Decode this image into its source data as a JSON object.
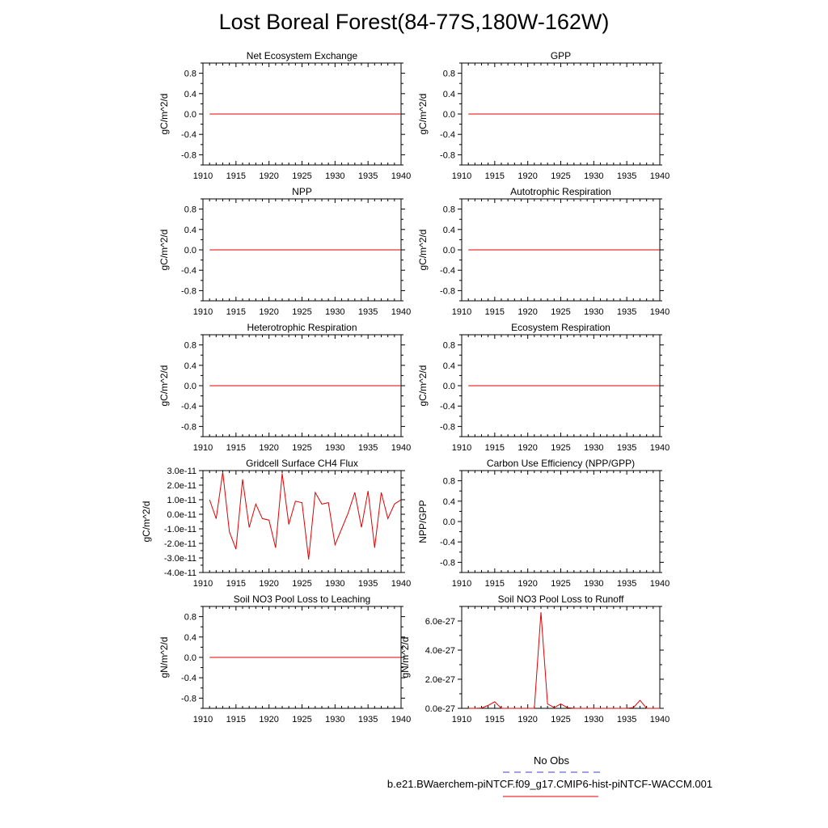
{
  "title": "Lost Boreal Forest(84-77S,180W-162W)",
  "legend": {
    "obs_label": "No Obs",
    "obs_color": "#4040c0",
    "case_label": "b.e21.BWaerchem-piNTCF.f09_g17.CMIP6-hist-piNTCF-WACCM.001",
    "case_color": "#e00000"
  },
  "chart_data": [
    {
      "type": "line",
      "title": "Net Ecosystem Exchange",
      "ylabel": "gC/m^2/d",
      "xlim": [
        1910,
        1940
      ],
      "ylim": [
        -1.0,
        1.0
      ],
      "xticks": [
        1910,
        1915,
        1920,
        1925,
        1930,
        1935,
        1940
      ],
      "yticks": [
        -0.8,
        -0.4,
        0.0,
        0.4,
        0.8
      ],
      "ytick_labels": [
        "-0.8",
        "-0.4",
        "0.0",
        "0.4",
        "0.8"
      ],
      "series": [
        {
          "color": "#e00000",
          "x": [
            1911,
            1940
          ],
          "y": [
            0,
            0
          ]
        }
      ]
    },
    {
      "type": "line",
      "title": "GPP",
      "ylabel": "gC/m^2/d",
      "xlim": [
        1910,
        1940
      ],
      "ylim": [
        -1.0,
        1.0
      ],
      "xticks": [
        1910,
        1915,
        1920,
        1925,
        1930,
        1935,
        1940
      ],
      "yticks": [
        -0.8,
        -0.4,
        0.0,
        0.4,
        0.8
      ],
      "ytick_labels": [
        "-0.8",
        "-0.4",
        "0.0",
        "0.4",
        "0.8"
      ],
      "series": [
        {
          "color": "#e00000",
          "x": [
            1911,
            1940
          ],
          "y": [
            0,
            0
          ]
        }
      ]
    },
    {
      "type": "line",
      "title": "NPP",
      "ylabel": "gC/m^2/d",
      "xlim": [
        1910,
        1940
      ],
      "ylim": [
        -1.0,
        1.0
      ],
      "xticks": [
        1910,
        1915,
        1920,
        1925,
        1930,
        1935,
        1940
      ],
      "yticks": [
        -0.8,
        -0.4,
        0.0,
        0.4,
        0.8
      ],
      "ytick_labels": [
        "-0.8",
        "-0.4",
        "0.0",
        "0.4",
        "0.8"
      ],
      "series": [
        {
          "color": "#e00000",
          "x": [
            1911,
            1940
          ],
          "y": [
            0,
            0
          ]
        }
      ]
    },
    {
      "type": "line",
      "title": "Autotrophic Respiration",
      "ylabel": "gC/m^2/d",
      "xlim": [
        1910,
        1940
      ],
      "ylim": [
        -1.0,
        1.0
      ],
      "xticks": [
        1910,
        1915,
        1920,
        1925,
        1930,
        1935,
        1940
      ],
      "yticks": [
        -0.8,
        -0.4,
        0.0,
        0.4,
        0.8
      ],
      "ytick_labels": [
        "-0.8",
        "-0.4",
        "0.0",
        "0.4",
        "0.8"
      ],
      "series": [
        {
          "color": "#e00000",
          "x": [
            1911,
            1940
          ],
          "y": [
            0,
            0
          ]
        }
      ]
    },
    {
      "type": "line",
      "title": "Heterotrophic Respiration",
      "ylabel": "gC/m^2/d",
      "xlim": [
        1910,
        1940
      ],
      "ylim": [
        -1.0,
        1.0
      ],
      "xticks": [
        1910,
        1915,
        1920,
        1925,
        1930,
        1935,
        1940
      ],
      "yticks": [
        -0.8,
        -0.4,
        0.0,
        0.4,
        0.8
      ],
      "ytick_labels": [
        "-0.8",
        "-0.4",
        "0.0",
        "0.4",
        "0.8"
      ],
      "series": [
        {
          "color": "#e00000",
          "x": [
            1911,
            1940
          ],
          "y": [
            0,
            0
          ]
        }
      ]
    },
    {
      "type": "line",
      "title": "Ecosystem Respiration",
      "ylabel": "gC/m^2/d",
      "xlim": [
        1910,
        1940
      ],
      "ylim": [
        -1.0,
        1.0
      ],
      "xticks": [
        1910,
        1915,
        1920,
        1925,
        1930,
        1935,
        1940
      ],
      "yticks": [
        -0.8,
        -0.4,
        0.0,
        0.4,
        0.8
      ],
      "ytick_labels": [
        "-0.8",
        "-0.4",
        "0.0",
        "0.4",
        "0.8"
      ],
      "series": [
        {
          "color": "#e00000",
          "x": [
            1911,
            1940
          ],
          "y": [
            0,
            0
          ]
        }
      ]
    },
    {
      "type": "line",
      "title": "Gridcell Surface CH4 Flux",
      "ylabel": "gC/m^2/d",
      "xlim": [
        1910,
        1940
      ],
      "ylim": [
        -4e-11,
        3e-11
      ],
      "xticks": [
        1910,
        1915,
        1920,
        1925,
        1930,
        1935,
        1940
      ],
      "yticks": [
        -4e-11,
        -3e-11,
        -2e-11,
        -1e-11,
        0,
        1e-11,
        2e-11,
        3e-11
      ],
      "ytick_labels": [
        "-4.0e-11",
        "-3.0e-11",
        "-2.0e-11",
        "-1.0e-11",
        "0.0e-11",
        "1.0e-11",
        "2.0e-11",
        "3.0e-11"
      ],
      "series": [
        {
          "color": "#e00000",
          "x": [
            1911,
            1912,
            1913,
            1914,
            1915,
            1916,
            1917,
            1918,
            1919,
            1920,
            1921,
            1922,
            1923,
            1924,
            1925,
            1926,
            1927,
            1928,
            1929,
            1930,
            1931,
            1932,
            1933,
            1934,
            1935,
            1936,
            1937,
            1938,
            1939,
            1940
          ],
          "y": [
            1e-11,
            -3e-12,
            2.9e-11,
            -1.2e-11,
            -2.4e-11,
            2.4e-11,
            -9e-12,
            7e-12,
            -3e-12,
            -4e-12,
            -2.3e-11,
            2.8e-11,
            -7e-12,
            9e-12,
            8e-12,
            -3.1e-11,
            1.5e-11,
            7e-12,
            8e-12,
            -2.1e-11,
            -1e-11,
            1e-12,
            1.5e-11,
            -9e-12,
            1.6e-11,
            -2.3e-11,
            1.5e-11,
            -3e-12,
            7e-12,
            1e-11
          ]
        }
      ]
    },
    {
      "type": "line",
      "title": "Carbon Use Efficiency (NPP/GPP)",
      "ylabel": "NPP/GPP",
      "xlim": [
        1910,
        1940
      ],
      "ylim": [
        -1.0,
        1.0
      ],
      "xticks": [
        1910,
        1915,
        1920,
        1925,
        1930,
        1935,
        1940
      ],
      "yticks": [
        -0.8,
        -0.4,
        0.0,
        0.4,
        0.8
      ],
      "ytick_labels": [
        "-0.8",
        "-0.4",
        "0.0",
        "0.4",
        "0.8"
      ],
      "series": []
    },
    {
      "type": "line",
      "title": "Soil NO3 Pool Loss to Leaching",
      "ylabel": "gN/m^2/d",
      "xlim": [
        1910,
        1940
      ],
      "ylim": [
        -1.0,
        1.0
      ],
      "xticks": [
        1910,
        1915,
        1920,
        1925,
        1930,
        1935,
        1940
      ],
      "yticks": [
        -0.8,
        -0.4,
        0.0,
        0.4,
        0.8
      ],
      "ytick_labels": [
        "-0.8",
        "-0.4",
        "0.0",
        "0.4",
        "0.8"
      ],
      "series": [
        {
          "color": "#e00000",
          "x": [
            1911,
            1940
          ],
          "y": [
            0,
            0
          ]
        }
      ]
    },
    {
      "type": "line",
      "title": "Soil NO3 Pool Loss to Runoff",
      "ylabel": "gN/m^2/d",
      "xlim": [
        1910,
        1940
      ],
      "ylim": [
        0,
        7e-27
      ],
      "xticks": [
        1910,
        1915,
        1920,
        1925,
        1930,
        1935,
        1940
      ],
      "yticks": [
        0,
        2e-27,
        4e-27,
        6e-27
      ],
      "ytick_labels": [
        "0.0e-27",
        "2.0e-27",
        "4.0e-27",
        "6.0e-27"
      ],
      "series": [
        {
          "color": "#e00000",
          "x": [
            1911,
            1912,
            1913,
            1914,
            1915,
            1916,
            1917,
            1918,
            1919,
            1920,
            1921,
            1922,
            1923,
            1924,
            1925,
            1926,
            1927,
            1928,
            1929,
            1930,
            1931,
            1932,
            1933,
            1934,
            1935,
            1936,
            1937,
            1938,
            1939,
            1940
          ],
          "y": [
            0,
            0,
            2e-29,
            2e-28,
            4.5e-28,
            0,
            0,
            0,
            0,
            0,
            0,
            6.6e-27,
            3e-28,
            5e-29,
            3e-28,
            5e-29,
            0,
            0,
            0,
            0,
            0,
            0,
            0,
            0,
            0,
            5e-29,
            5.5e-28,
            0,
            0,
            0
          ]
        }
      ]
    }
  ]
}
